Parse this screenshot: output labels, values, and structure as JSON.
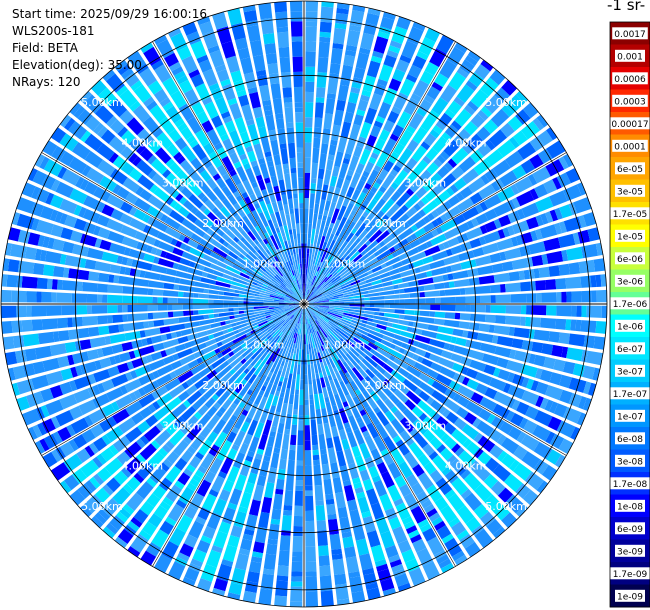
{
  "header": {
    "start_time": "Start time: 2025/09/29 16:00:16",
    "instrument": "WLS200s-181",
    "field": "Field: BETA",
    "elevation": "Elevation(deg): 35.00",
    "nrays": "NRays: 120"
  },
  "colorbar": {
    "title_fragment": "-1 sr-",
    "labels": [
      "0.0017",
      "0.001",
      "0.0006",
      "0.0003",
      "0.00017",
      "0.0001",
      "6e-05",
      "3e-05",
      "1.7e-05",
      "1e-05",
      "6e-06",
      "3e-06",
      "1.7e-06",
      "1e-06",
      "6e-07",
      "3e-07",
      "1.7e-07",
      "1e-07",
      "6e-08",
      "3e-08",
      "1.7e-08",
      "1e-08",
      "6e-09",
      "3e-09",
      "1.7e-09",
      "1e-09"
    ],
    "colors": [
      "#8b0000",
      "#b40000",
      "#e60000",
      "#ff2800",
      "#ff5a00",
      "#ff8c00",
      "#ffa500",
      "#ffc000",
      "#ffe000",
      "#ffff00",
      "#c8ff3c",
      "#96ff64",
      "#64ff96",
      "#00ffff",
      "#00e6ff",
      "#00ccff",
      "#00b0ff",
      "#0096ff",
      "#0078ff",
      "#005aff",
      "#0030ff",
      "#0000ff",
      "#0000cd",
      "#00009b",
      "#000080",
      "#000050"
    ]
  },
  "chart_data": {
    "type": "heatmap",
    "projection": "polar PPI",
    "n_rays": 120,
    "max_range_km": 5.3,
    "range_rings_km": [
      1,
      2,
      3,
      4,
      5
    ],
    "ring_labels": [
      "1.00km",
      "2.00km",
      "3.00km",
      "4.00km",
      "5.00km"
    ],
    "colormap": "jet",
    "dominant_colors": [
      "#1e90ff",
      "#3aa6ff",
      "#00e6ff",
      "#00ccff",
      "#0064ff",
      "#0000ff"
    ],
    "near_center_feature": "high-backscatter (dark blue) plume extending north from center",
    "grid": true
  }
}
